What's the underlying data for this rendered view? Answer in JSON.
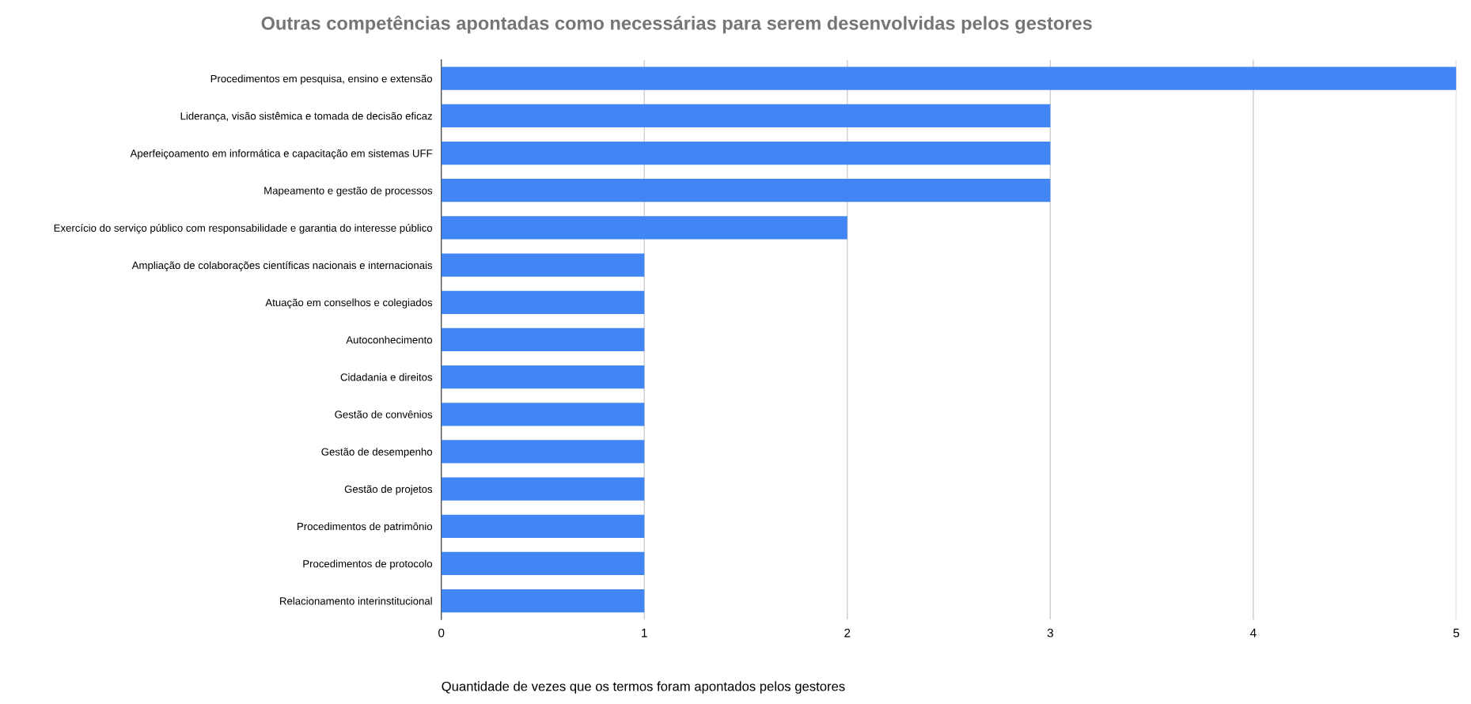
{
  "chart_data": {
    "type": "bar",
    "orientation": "horizontal",
    "title": "Outras competências apontadas como necessárias para serem desenvolvidas pelos gestores",
    "xlabel": "Quantidade de vezes que os termos foram apontados pelos gestores",
    "categories": [
      "Procedimentos em pesquisa, ensino e extensão",
      "Liderança, visão sistêmica e tomada de decisão eficaz",
      "Aperfeiçoamento em informática e capacitação em sistemas UFF",
      "Mapeamento e gestão de processos",
      "Exercício do serviço público com responsabilidade e garantia do interesse público",
      "Ampliação de colaborações científicas nacionais e internacionais",
      "Atuação em conselhos e colegiados",
      "Autoconhecimento",
      "Cidadania e direitos",
      "Gestão de convênios",
      "Gestão de desempenho",
      "Gestão de projetos",
      "Procedimentos de patrimônio",
      "Procedimentos de protocolo",
      "Relacionamento interinstitucional"
    ],
    "values": [
      5,
      3,
      3,
      3,
      2,
      1,
      1,
      1,
      1,
      1,
      1,
      1,
      1,
      1,
      1
    ],
    "color": "#4285f4",
    "xlim": [
      0,
      5
    ],
    "xticks": [
      0,
      1,
      2,
      3,
      4,
      5
    ],
    "grid": "x",
    "legend": false
  }
}
